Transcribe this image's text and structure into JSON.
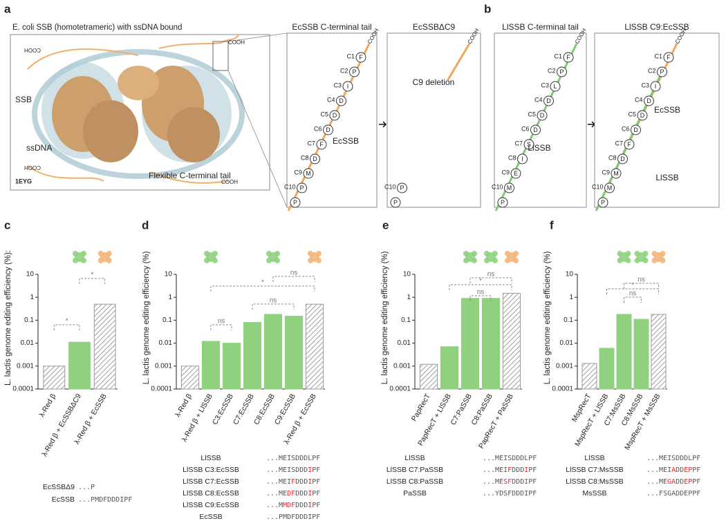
{
  "panel_labels": [
    "a",
    "b",
    "c",
    "d",
    "e",
    "f"
  ],
  "structure": {
    "title": "E. coli SSB (homotetrameric) with ssDNA bound",
    "labels": [
      "SSB",
      "ssDNA",
      "Flexible C-terminal tail"
    ],
    "pdb": "1EYG",
    "termini": [
      "COOH",
      "COOH",
      "COOH",
      "COOH"
    ]
  },
  "tails": [
    {
      "title": "EcSSB C-terminal tail",
      "terminus": "COOH",
      "labels": [
        "EcSSB"
      ],
      "residues": [
        {
          "position": "C1",
          "aa": "F"
        },
        {
          "position": "C2",
          "aa": "P"
        },
        {
          "position": "C3",
          "aa": "I"
        },
        {
          "position": "C4",
          "aa": "D"
        },
        {
          "position": "C5",
          "aa": "D"
        },
        {
          "position": "C6",
          "aa": "D"
        },
        {
          "position": "C7",
          "aa": "F"
        },
        {
          "position": "C8",
          "aa": "D"
        },
        {
          "position": "C9",
          "aa": "M"
        },
        {
          "position": "C10",
          "aa": "P"
        },
        {
          "position": null,
          "aa": "P"
        }
      ]
    },
    {
      "title": "EcSSBΔC9",
      "terminus": "COOH",
      "labels": [
        "C9 deletion"
      ],
      "residues": [
        {
          "position": "C10",
          "aa": "P"
        },
        {
          "position": null,
          "aa": "P"
        }
      ]
    },
    {
      "title": "LlSSB C-terminal tail",
      "terminus": "COOH",
      "labels": [
        "LlSSB"
      ],
      "residues": [
        {
          "position": "C1",
          "aa": "F"
        },
        {
          "position": "C2",
          "aa": "P"
        },
        {
          "position": "C3",
          "aa": "L"
        },
        {
          "position": "C4",
          "aa": "D"
        },
        {
          "position": "C5",
          "aa": "D"
        },
        {
          "position": "C6",
          "aa": "D"
        },
        {
          "position": "C7",
          "aa": "S"
        },
        {
          "position": "C8",
          "aa": "I"
        },
        {
          "position": "C9",
          "aa": "E"
        },
        {
          "position": "C10",
          "aa": "M"
        },
        {
          "position": null,
          "aa": "P"
        }
      ]
    },
    {
      "title": "LlSSB C9:EcSSB",
      "terminus": "COOH",
      "labels": [
        "EcSSB",
        "LlSSB"
      ],
      "residues": [
        {
          "position": "C1",
          "aa": "F"
        },
        {
          "position": "C2",
          "aa": "P"
        },
        {
          "position": "C3",
          "aa": "I"
        },
        {
          "position": "C4",
          "aa": "D"
        },
        {
          "position": "C5",
          "aa": "D"
        },
        {
          "position": "C6",
          "aa": "D"
        },
        {
          "position": "C7",
          "aa": "F"
        },
        {
          "position": "C8",
          "aa": "D"
        },
        {
          "position": "C9",
          "aa": "M"
        },
        {
          "position": "C10",
          "aa": "M"
        },
        {
          "position": null,
          "aa": "P"
        }
      ]
    }
  ],
  "chart_data": [
    {
      "type": "bar",
      "ylabel": "L. lactis genome editing efficiency (%):",
      "log_scale": true,
      "ylim": [
        0.0001,
        10
      ],
      "yticks": [
        0.0001,
        0.001,
        0.01,
        0.1,
        1,
        10
      ],
      "categories": [
        "λ-Red β",
        "λ-Red β + EcSSBΔC9",
        "λ-Red β + EcSSB"
      ],
      "values": [
        0.001,
        0.011,
        0.5
      ],
      "colors": [
        "#e6e6e6",
        "#8fd17f",
        "#e6e6e6"
      ],
      "hatch": [
        true,
        false,
        true
      ],
      "annotations": [
        "*",
        "*"
      ],
      "sequences": [
        {
          "name": "EcSSBΔ9",
          "parts": [
            {
              "text": "...P"
            }
          ]
        },
        {
          "name": "EcSSB",
          "parts": [
            {
              "text": "...PMDFDDDIPF"
            }
          ]
        }
      ]
    },
    {
      "type": "bar",
      "ylabel": "L. lactis genome editing efficiency (%)",
      "log_scale": true,
      "ylim": [
        0.0001,
        10
      ],
      "yticks": [
        0.0001,
        0.001,
        0.01,
        0.1,
        1,
        10
      ],
      "categories": [
        "λ-Red β",
        "λ-Red β + LlSSB",
        "C3:EcSSB",
        "C7:EcSSB",
        "C8:EcSSB",
        "C9:EcSSB",
        "λ-Red β + EcSSB"
      ],
      "values": [
        0.001,
        0.012,
        0.01,
        0.08,
        0.18,
        0.15,
        0.5
      ],
      "colors": [
        "#e6e6e6",
        "#8fd17f",
        "#8fd17f",
        "#8fd17f",
        "#8fd17f",
        "#8fd17f",
        "#e6e6e6"
      ],
      "hatch": [
        true,
        false,
        false,
        false,
        false,
        false,
        true
      ],
      "annotations": [
        "ns",
        "*",
        "ns",
        "ns"
      ],
      "sequences": [
        {
          "name": "LlSSB",
          "parts": [
            {
              "text": "...MEISDDDLPF"
            }
          ]
        },
        {
          "name": "LlSSB C3:EcSSB",
          "parts": [
            {
              "text": "...MEISDDD"
            },
            {
              "text": "I",
              "color": "#e8282b"
            },
            {
              "text": "PF"
            }
          ]
        },
        {
          "name": "LlSSB C7:EcSSB",
          "parts": [
            {
              "text": "...MEI"
            },
            {
              "text": "F",
              "color": "#e8282b"
            },
            {
              "text": "DDD"
            },
            {
              "text": "I",
              "color": "#e8282b"
            },
            {
              "text": "PF"
            }
          ]
        },
        {
          "name": "LlSSB C8:EcSSB",
          "parts": [
            {
              "text": "...ME"
            },
            {
              "text": "DF",
              "color": "#e8282b"
            },
            {
              "text": "DDD"
            },
            {
              "text": "I",
              "color": "#e8282b"
            },
            {
              "text": "PF"
            }
          ]
        },
        {
          "name": "LlSSB C9:EcSSB",
          "parts": [
            {
              "text": "...M"
            },
            {
              "text": "MDF",
              "color": "#e8282b"
            },
            {
              "text": "DDD"
            },
            {
              "text": "I",
              "color": "#e8282b"
            },
            {
              "text": "PF"
            }
          ]
        },
        {
          "name": "EcSSB",
          "parts": [
            {
              "text": "...PMDFDDDIPF"
            }
          ]
        }
      ]
    },
    {
      "type": "bar",
      "ylabel": "L. lactis genome editing efficiency (%)",
      "log_scale": true,
      "ylim": [
        0.0001,
        10
      ],
      "yticks": [
        0.0001,
        0.001,
        0.01,
        0.1,
        1,
        10
      ],
      "categories": [
        "PapRecT",
        "PapRecT + LlSSB",
        "C7:PaSSB",
        "C8:PaSSB",
        "PapRecT + PaSSB"
      ],
      "values": [
        0.0012,
        0.007,
        0.9,
        0.9,
        1.5
      ],
      "colors": [
        "#e6e6e6",
        "#8fd17f",
        "#8fd17f",
        "#8fd17f",
        "#e6e6e6"
      ],
      "hatch": [
        true,
        false,
        false,
        false,
        true
      ],
      "annotations": [
        "*",
        "ns",
        "ns"
      ],
      "sequences": [
        {
          "name": "LlSSB",
          "parts": [
            {
              "text": "...MEISDDDLPF"
            }
          ]
        },
        {
          "name": "LlSSB C7:PaSSB",
          "parts": [
            {
              "text": "...MEI"
            },
            {
              "text": "F",
              "color": "#e8282b"
            },
            {
              "text": "DDD"
            },
            {
              "text": "I",
              "color": "#e8282b"
            },
            {
              "text": "PF"
            }
          ]
        },
        {
          "name": "LlSSB C8:PaSSB",
          "parts": [
            {
              "text": "...ME"
            },
            {
              "text": "SF",
              "color": "#e8282b"
            },
            {
              "text": "DDD"
            },
            {
              "text": "I",
              "color": "#e8282b"
            },
            {
              "text": "PF"
            }
          ]
        },
        {
          "name": "PaSSB",
          "parts": [
            {
              "text": "...YDSFDDDIPF"
            }
          ]
        }
      ]
    },
    {
      "type": "bar",
      "ylabel": "L. lactis genome editing efficiency (%)",
      "log_scale": true,
      "ylim": [
        0.0001,
        10
      ],
      "yticks": [
        0.0001,
        0.001,
        0.01,
        0.1,
        1,
        10
      ],
      "categories": [
        "MspRecT",
        "MspRecT + LlSSB",
        "C7:MsSSB",
        "C8:MsSSB",
        "MspRecT + MsSSB"
      ],
      "values": [
        0.0013,
        0.006,
        0.18,
        0.11,
        0.18
      ],
      "colors": [
        "#e6e6e6",
        "#8fd17f",
        "#8fd17f",
        "#8fd17f",
        "#e6e6e6"
      ],
      "hatch": [
        true,
        false,
        false,
        false,
        true
      ],
      "annotations": [
        "*",
        "ns",
        "ns"
      ],
      "sequences": [
        {
          "name": "LlSSB",
          "parts": [
            {
              "text": "...MEISDDDLPF"
            }
          ]
        },
        {
          "name": "LlSSB C7:MsSSB",
          "parts": [
            {
              "text": "...MEI"
            },
            {
              "text": "A",
              "color": "#e8282b"
            },
            {
              "text": "DD"
            },
            {
              "text": "EP",
              "color": "#e8282b"
            },
            {
              "text": "PF"
            }
          ]
        },
        {
          "name": "LlSSB C8:MsSSB",
          "parts": [
            {
              "text": "...ME"
            },
            {
              "text": "GA",
              "color": "#e8282b"
            },
            {
              "text": "DD"
            },
            {
              "text": "EP",
              "color": "#e8282b"
            },
            {
              "text": "PF"
            }
          ]
        },
        {
          "name": "MsSSB",
          "parts": [
            {
              "text": "...FSGADDEPPF"
            }
          ]
        }
      ]
    }
  ]
}
